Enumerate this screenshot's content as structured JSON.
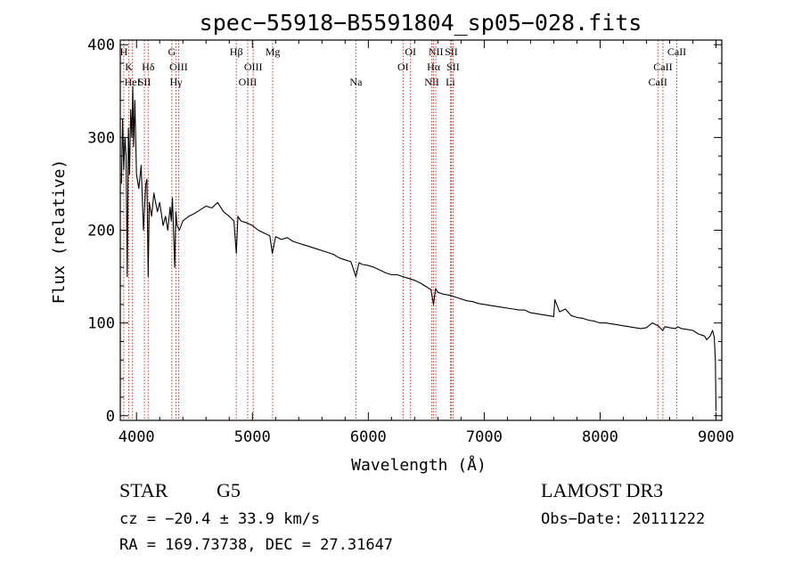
{
  "chart_data": {
    "type": "line",
    "title": "spec−55918−B5591804_sp05−028.fits",
    "xlabel": "Wavelength (Å)",
    "ylabel": "Flux (relative)",
    "xlim": [
      3860,
      9050
    ],
    "ylim": [
      -5,
      405
    ],
    "x_ticks": [
      4000,
      5000,
      6000,
      7000,
      8000,
      9000
    ],
    "y_ticks": [
      0,
      100,
      200,
      300,
      400
    ],
    "series": [
      {
        "name": "flux",
        "x": [
          3870,
          3880,
          3890,
          3900,
          3910,
          3920,
          3930,
          3940,
          3950,
          3960,
          3968,
          3975,
          3985,
          4000,
          4020,
          4040,
          4060,
          4080,
          4090,
          4101,
          4110,
          4130,
          4150,
          4180,
          4200,
          4230,
          4250,
          4270,
          4290,
          4300,
          4310,
          4330,
          4340,
          4350,
          4370,
          4400,
          4450,
          4500,
          4550,
          4600,
          4650,
          4700,
          4750,
          4800,
          4840,
          4861,
          4875,
          4900,
          4950,
          5000,
          5050,
          5100,
          5150,
          5172,
          5200,
          5250,
          5300,
          5350,
          5400,
          5450,
          5500,
          5550,
          5600,
          5650,
          5700,
          5750,
          5800,
          5850,
          5893,
          5920,
          5950,
          6000,
          6050,
          6100,
          6150,
          6200,
          6250,
          6300,
          6350,
          6400,
          6450,
          6500,
          6540,
          6563,
          6580,
          6600,
          6650,
          6700,
          6750,
          6800,
          6850,
          6900,
          6950,
          7000,
          7050,
          7100,
          7150,
          7200,
          7250,
          7300,
          7350,
          7400,
          7450,
          7500,
          7550,
          7600,
          7610,
          7650,
          7700,
          7750,
          7800,
          7850,
          7900,
          7950,
          8000,
          8050,
          8100,
          8150,
          8200,
          8250,
          8300,
          8350,
          8400,
          8450,
          8500,
          8540,
          8560,
          8600,
          8650,
          8670,
          8700,
          8750,
          8800,
          8850,
          8900,
          8920,
          8950,
          8970,
          8985,
          8995,
          9000
        ],
        "values": [
          250,
          320,
          265,
          300,
          280,
          150,
          310,
          260,
          330,
          300,
          355,
          290,
          340,
          260,
          245,
          270,
          200,
          250,
          255,
          150,
          230,
          215,
          240,
          220,
          230,
          205,
          215,
          200,
          225,
          210,
          235,
          160,
          220,
          205,
          200,
          210,
          215,
          218,
          222,
          226,
          224,
          230,
          220,
          215,
          210,
          175,
          215,
          210,
          208,
          205,
          200,
          197,
          194,
          175,
          193,
          190,
          192,
          188,
          186,
          184,
          182,
          180,
          178,
          176,
          174,
          170,
          168,
          166,
          150,
          165,
          163,
          162,
          160,
          157,
          154,
          152,
          152,
          150,
          148,
          146,
          143,
          139,
          136,
          120,
          137,
          133,
          131,
          130,
          128,
          126,
          124,
          123,
          121,
          120,
          119,
          118,
          117,
          116,
          115,
          114,
          114,
          111,
          110,
          109,
          108,
          107,
          125,
          112,
          115,
          108,
          106,
          105,
          103,
          102,
          100,
          100,
          99,
          98,
          97,
          96,
          95,
          94,
          95,
          100,
          97,
          92,
          96,
          95,
          94,
          96,
          94,
          93,
          92,
          88,
          86,
          82,
          86,
          92,
          85,
          60,
          5
        ]
      }
    ],
    "lines": [
      {
        "label": "H",
        "x": 3890,
        "row": 0
      },
      {
        "label": "K",
        "x": 3934,
        "row": 1
      },
      {
        "label": "HeI",
        "x": 3965,
        "row": 2
      },
      {
        "label": "Hδ",
        "x": 4101,
        "row": 1
      },
      {
        "label": "SII",
        "x": 4068,
        "row": 2
      },
      {
        "label": "G",
        "x": 4305,
        "row": 0
      },
      {
        "label": "OIII",
        "x": 4363,
        "row": 1
      },
      {
        "label": "Hγ",
        "x": 4340,
        "row": 2
      },
      {
        "label": "Hβ",
        "x": 4861,
        "row": 0
      },
      {
        "label": "OIII",
        "x": 4959,
        "row": 2
      },
      {
        "label": "OIII",
        "x": 5007,
        "row": 1
      },
      {
        "label": "Mg",
        "x": 5175,
        "row": 0
      },
      {
        "label": "Na",
        "x": 5893,
        "row": 2
      },
      {
        "label": "OI",
        "x": 6300,
        "row": 1
      },
      {
        "label": "OI",
        "x": 6364,
        "row": 0
      },
      {
        "label": "NII",
        "x": 6548,
        "row": 2
      },
      {
        "label": "NII",
        "x": 6583,
        "row": 0
      },
      {
        "label": "Hα",
        "x": 6563,
        "row": 1
      },
      {
        "label": "SII",
        "x": 6716,
        "row": 0
      },
      {
        "label": "SII",
        "x": 6731,
        "row": 1
      },
      {
        "label": "Li",
        "x": 6708,
        "row": 2
      },
      {
        "label": "CaII",
        "x": 8498,
        "row": 2
      },
      {
        "label": "CaII",
        "x": 8542,
        "row": 1
      },
      {
        "label": "CaII",
        "x": 8662,
        "row": 0
      }
    ]
  },
  "info": {
    "object_class": "STAR",
    "subclass": "G5",
    "survey": "LAMOST DR3",
    "redshift_line": "cz = −20.4 ± 33.9 km/s",
    "obs_date": "Obs−Date: 20111222",
    "coords": "RA = 169.73738, DEC =  27.31647"
  },
  "colors": {
    "spectrum": "#000000",
    "line_marker": "#c0392b"
  }
}
